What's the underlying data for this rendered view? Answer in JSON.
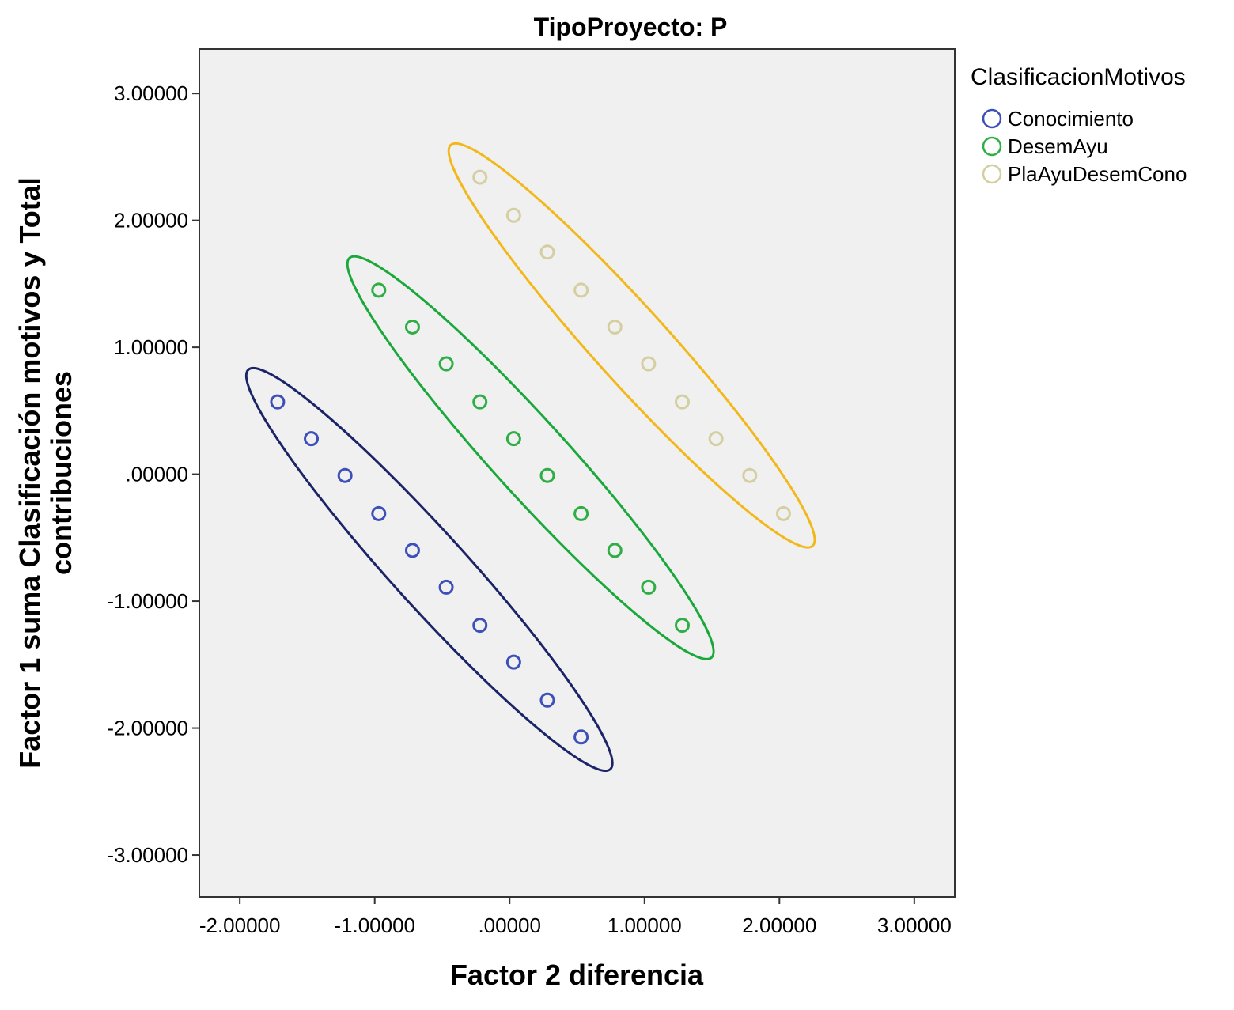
{
  "chart_data": {
    "type": "scatter",
    "title": "TipoProyecto: P",
    "xlabel": "Factor 2 diferencia",
    "ylabel_lines": [
      "Factor 1 suma Clasificación motivos y Total",
      "contribuciones"
    ],
    "xlim": [
      -2.3,
      3.3
    ],
    "ylim": [
      -3.33,
      3.35
    ],
    "xticks": [
      -2,
      -1,
      0,
      1,
      2,
      3
    ],
    "xtick_labels": [
      "-2.00000",
      "-1.00000",
      ".00000",
      "1.00000",
      "2.00000",
      "3.00000"
    ],
    "yticks": [
      3,
      2,
      1,
      0,
      -1,
      -2,
      -3
    ],
    "ytick_labels": [
      "3.00000",
      "2.00000",
      "1.00000",
      ".00000",
      "-1.00000",
      "-2.00000",
      "-3.00000"
    ],
    "grid": false,
    "legend": {
      "title": "ClasificacionMotivos",
      "placement": "top-right"
    },
    "series": [
      {
        "name": "Conocimiento",
        "color": "#3d4fb8",
        "ellipse_color": "#1a2466",
        "x": [
          -1.72,
          -1.47,
          -1.22,
          -0.97,
          -0.72,
          -0.47,
          -0.22,
          0.03,
          0.28,
          0.53
        ],
        "y": [
          0.57,
          0.28,
          -0.01,
          -0.31,
          -0.6,
          -0.89,
          -1.19,
          -1.48,
          -1.78,
          -2.07
        ]
      },
      {
        "name": "DesemAyu",
        "color": "#2eae44",
        "ellipse_color": "#1aa83a",
        "x": [
          -0.97,
          -0.72,
          -0.47,
          -0.22,
          0.03,
          0.28,
          0.53,
          0.78,
          1.03,
          1.28
        ],
        "y": [
          1.45,
          1.16,
          0.87,
          0.57,
          0.28,
          -0.01,
          -0.31,
          -0.6,
          -0.89,
          -1.19
        ]
      },
      {
        "name": "PlaAyuDesemCono",
        "color": "#d4cfa0",
        "ellipse_color": "#f2b81a",
        "x": [
          -0.22,
          0.03,
          0.28,
          0.53,
          0.78,
          1.03,
          1.28,
          1.53,
          1.78,
          2.03
        ],
        "y": [
          2.34,
          2.04,
          1.75,
          1.45,
          1.16,
          0.87,
          0.57,
          0.28,
          -0.01,
          -0.31
        ]
      }
    ]
  }
}
